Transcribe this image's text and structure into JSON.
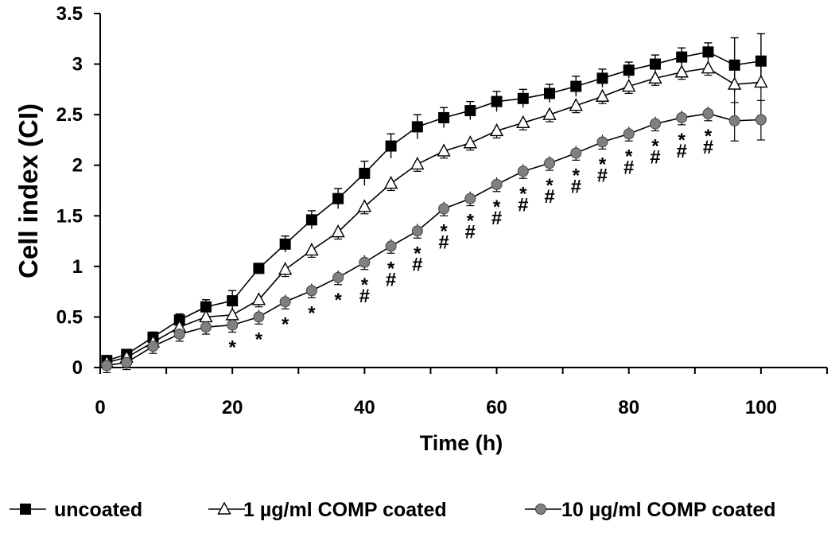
{
  "chart_data": {
    "type": "line",
    "xlabel": "Time (h)",
    "ylabel": "Cell index (CI)",
    "xlim": [
      0,
      110
    ],
    "ylim": [
      0,
      3.5
    ],
    "x_ticks": [
      "0",
      "20",
      "40",
      "60",
      "80",
      "100"
    ],
    "x_tick_values": [
      0,
      20,
      40,
      60,
      80,
      100
    ],
    "y_ticks": [
      "0",
      "0.5",
      "1",
      "1.5",
      "2",
      "2.5",
      "3",
      "3.5"
    ],
    "y_tick_values": [
      0,
      0.5,
      1,
      1.5,
      2,
      2.5,
      3,
      3.5
    ],
    "grid": false,
    "legend_position": "bottom",
    "series": [
      {
        "name": "uncoated",
        "marker": "filled-square",
        "color": "#000000",
        "x": [
          1,
          4,
          8,
          12,
          16,
          20,
          24,
          28,
          32,
          36,
          40,
          44,
          48,
          52,
          56,
          60,
          64,
          68,
          72,
          76,
          80,
          84,
          88,
          92,
          96,
          100
        ],
        "y": [
          0.07,
          0.13,
          0.3,
          0.47,
          0.6,
          0.66,
          0.98,
          1.22,
          1.46,
          1.67,
          1.92,
          2.19,
          2.38,
          2.47,
          2.54,
          2.63,
          2.66,
          2.71,
          2.78,
          2.86,
          2.94,
          3.0,
          3.07,
          3.12,
          2.99,
          3.03
        ],
        "err": [
          0.03,
          0.04,
          0.05,
          0.06,
          0.07,
          0.1,
          0.05,
          0.08,
          0.09,
          0.1,
          0.12,
          0.12,
          0.12,
          0.1,
          0.09,
          0.1,
          0.09,
          0.09,
          0.1,
          0.09,
          0.08,
          0.09,
          0.09,
          0.09,
          0.27,
          0.27
        ]
      },
      {
        "name": "1 µg/ml COMP coated",
        "marker": "open-triangle",
        "color": "#000000",
        "x": [
          1,
          4,
          8,
          12,
          16,
          20,
          24,
          28,
          32,
          36,
          40,
          44,
          48,
          52,
          56,
          60,
          64,
          68,
          72,
          76,
          80,
          84,
          88,
          92,
          96,
          100
        ],
        "y": [
          0.05,
          0.1,
          0.25,
          0.4,
          0.5,
          0.52,
          0.67,
          0.97,
          1.16,
          1.34,
          1.59,
          1.82,
          2.01,
          2.14,
          2.22,
          2.34,
          2.42,
          2.5,
          2.59,
          2.68,
          2.78,
          2.86,
          2.92,
          2.96,
          2.8,
          2.82
        ]
      },
      {
        "name": "10 µg/ml COMP coated",
        "marker": "filled-circle-gray",
        "color": "#808080",
        "x": [
          1,
          4,
          8,
          12,
          16,
          20,
          24,
          28,
          32,
          36,
          40,
          44,
          48,
          52,
          56,
          60,
          64,
          68,
          72,
          76,
          80,
          84,
          88,
          92,
          96,
          100
        ],
        "y": [
          0.02,
          0.05,
          0.21,
          0.33,
          0.4,
          0.42,
          0.5,
          0.65,
          0.76,
          0.89,
          1.04,
          1.2,
          1.35,
          1.57,
          1.67,
          1.81,
          1.94,
          2.02,
          2.12,
          2.23,
          2.31,
          2.41,
          2.47,
          2.51,
          2.44,
          2.45
        ]
      }
    ],
    "annotations": [
      {
        "x": 20,
        "text": "*"
      },
      {
        "x": 24,
        "text": "*"
      },
      {
        "x": 28,
        "text": "*"
      },
      {
        "x": 32,
        "text": "*"
      },
      {
        "x": 36,
        "text": "*"
      },
      {
        "x": 40,
        "text": "*#"
      },
      {
        "x": 44,
        "text": "*#"
      },
      {
        "x": 48,
        "text": "*#"
      },
      {
        "x": 52,
        "text": "*#"
      },
      {
        "x": 56,
        "text": "*#"
      },
      {
        "x": 60,
        "text": "*#"
      },
      {
        "x": 64,
        "text": "*#"
      },
      {
        "x": 68,
        "text": "*#"
      },
      {
        "x": 72,
        "text": "*#"
      },
      {
        "x": 76,
        "text": "*#"
      },
      {
        "x": 80,
        "text": "*#"
      },
      {
        "x": 84,
        "text": "*#"
      },
      {
        "x": 88,
        "text": "*#"
      },
      {
        "x": 92,
        "text": "*#"
      }
    ]
  }
}
